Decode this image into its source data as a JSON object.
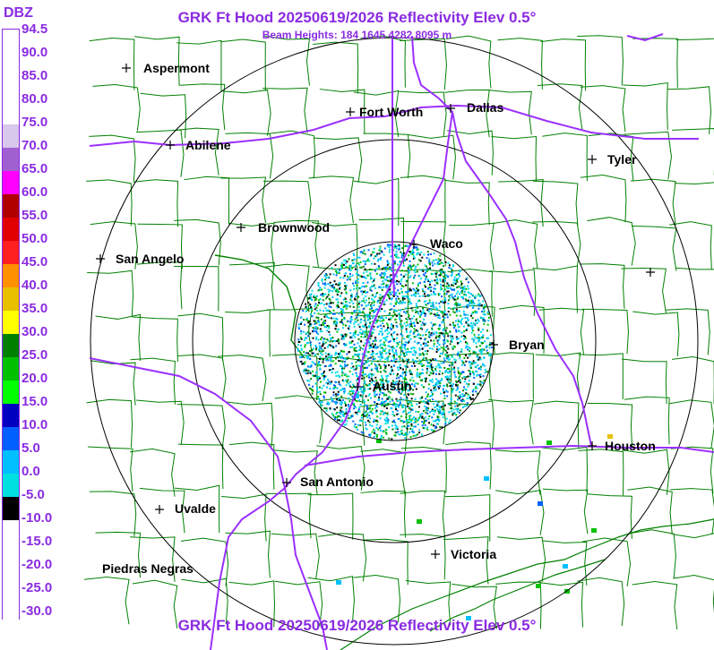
{
  "header": {
    "title": "GRK Ft Hood 20250619/2026 Reflectivity Elev 0.5°",
    "subtitle": "Beam Heights: 184 1645 4282 8095 m",
    "footer": "GRK Ft Hood 20250619/2026 Reflectivity Elev 0.5°"
  },
  "legend": {
    "title": "DBZ",
    "entries": [
      {
        "label": "94.5",
        "color": "#ffffff"
      },
      {
        "label": "90.0",
        "color": "#ffffff"
      },
      {
        "label": "85.0",
        "color": "#ffffff"
      },
      {
        "label": "80.0",
        "color": "#ffffff"
      },
      {
        "label": "75.0",
        "color": "#d8c8ec"
      },
      {
        "label": "70.0",
        "color": "#a060d0"
      },
      {
        "label": "65.0",
        "color": "#ff00ff"
      },
      {
        "label": "60.0",
        "color": "#b00000"
      },
      {
        "label": "55.0",
        "color": "#e00000"
      },
      {
        "label": "50.0",
        "color": "#ff2020"
      },
      {
        "label": "45.0",
        "color": "#ff9000"
      },
      {
        "label": "40.0",
        "color": "#e8c000"
      },
      {
        "label": "35.0",
        "color": "#ffff00"
      },
      {
        "label": "30.0",
        "color": "#008000"
      },
      {
        "label": "25.0",
        "color": "#00c000"
      },
      {
        "label": "20.0",
        "color": "#00ff00"
      },
      {
        "label": "15.0",
        "color": "#0000c0"
      },
      {
        "label": "10.0",
        "color": "#0060ff"
      },
      {
        "label": "5.0",
        "color": "#00c0ff"
      },
      {
        "label": "0.0",
        "color": "#00e0e0"
      },
      {
        "label": "-5.0",
        "color": "#000000"
      },
      {
        "label": "-10.0",
        "color": "#ffffff"
      },
      {
        "label": "-15.0",
        "color": "#ffffff"
      },
      {
        "label": "-20.0",
        "color": "#ffffff"
      },
      {
        "label": "-25.0",
        "color": "#ffffff"
      },
      {
        "label": "-30.0",
        "color": "#ffffff"
      }
    ]
  },
  "cities": [
    {
      "name": "Aspermont"
    },
    {
      "name": "Abilene"
    },
    {
      "name": "Fort Worth"
    },
    {
      "name": "Dallas"
    },
    {
      "name": "Tyler"
    },
    {
      "name": "Brownwood"
    },
    {
      "name": "Waco"
    },
    {
      "name": "San Angelo"
    },
    {
      "name": "Bryan"
    },
    {
      "name": "Austin"
    },
    {
      "name": "Houston"
    },
    {
      "name": "San Antonio"
    },
    {
      "name": "Uvalde"
    },
    {
      "name": "Victoria"
    },
    {
      "name": "Piedras Negras"
    }
  ],
  "colors": {
    "label": "#8a2be2",
    "county_lines": "#008000",
    "highways": "#9b30ff",
    "range_rings": "#000000"
  }
}
